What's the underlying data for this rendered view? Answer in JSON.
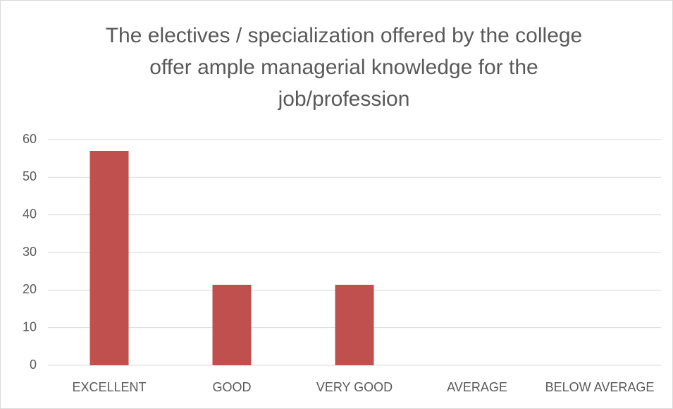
{
  "chart_data": {
    "type": "bar",
    "title": "The electives / specialization offered by the college offer ample managerial knowledge for the job/profession",
    "categories": [
      "EXCELLENT",
      "GOOD",
      "VERY GOOD",
      "AVERAGE",
      "BELOW AVERAGE"
    ],
    "values": [
      57,
      21.4,
      21.4,
      0,
      0
    ],
    "color": "#c0504d",
    "ylim": [
      0,
      60
    ],
    "yticks": [
      0,
      10,
      20,
      30,
      40,
      50,
      60
    ],
    "grid": true
  }
}
